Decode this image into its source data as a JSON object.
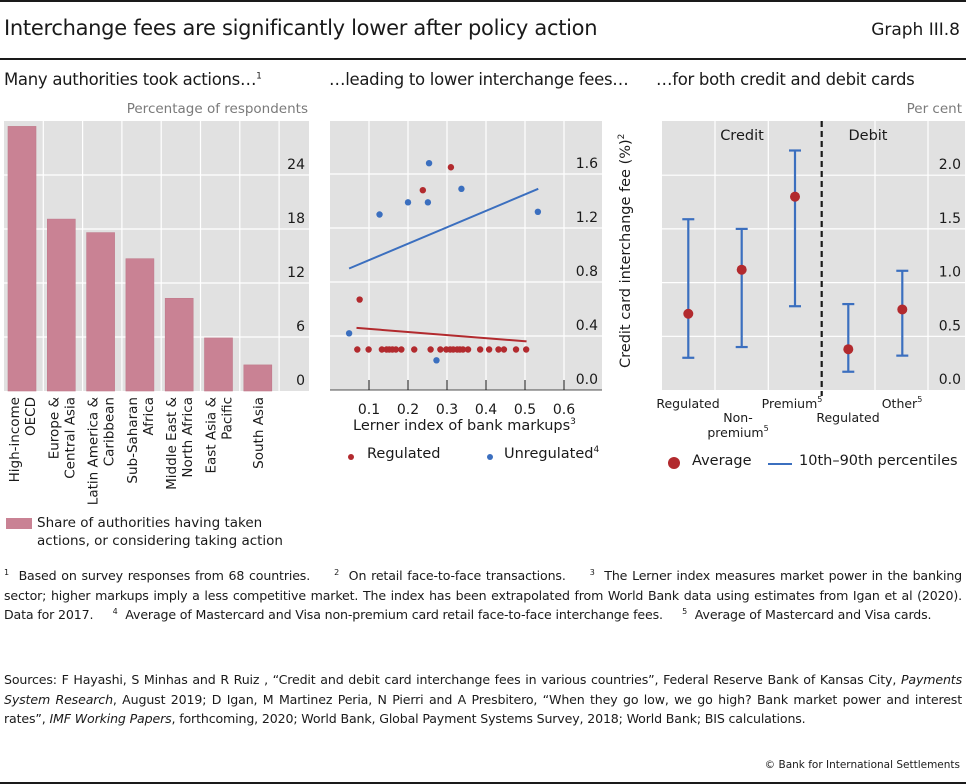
{
  "header": {
    "title": "Interchange fees are significantly lower after policy action",
    "graph_number": "Graph III.8"
  },
  "colors": {
    "bar": "#c98294",
    "regulated": "#b22a2e",
    "unregulated": "#3b6fbf",
    "plot_bg": "#e1e1e1",
    "grid": "#ffffff"
  },
  "panels": {
    "left": {
      "title": "Many authorities took actions…",
      "title_sup": "1",
      "unit": "Percentage of respondents",
      "legend": "Share of authorities having taken actions, or considering taking action"
    },
    "middle": {
      "title": "…leading to lower interchange fees…",
      "xlabel": "Lerner index of bank markups",
      "xlabel_sup": "3",
      "ylabel": "Credit card interchange fee (%)",
      "ylabel_sup": "2",
      "legend_regulated": "Regulated",
      "legend_unregulated": "Unregulated",
      "legend_unregulated_sup": "4"
    },
    "right": {
      "title": "…for both credit and debit cards",
      "unit": "Per cent",
      "legend_average": "Average",
      "legend_range": "10th–90th percentiles"
    }
  },
  "chart_data": [
    {
      "type": "bar",
      "title": "Many authorities took actions…",
      "ylabel": "Percentage of respondents",
      "categories": [
        "High-income OECD",
        "Europe & Central Asia",
        "Latin America & Caribbean",
        "Sub-Saharan Africa",
        "Middle East & North Africa",
        "East Asia & Pacific",
        "South Asia"
      ],
      "category_lines": [
        [
          "High-income",
          "OECD"
        ],
        [
          "Europe &",
          "Central Asia"
        ],
        [
          "Latin America &",
          "Caribbean"
        ],
        [
          "Sub-Saharan",
          "Africa"
        ],
        [
          "Middle East &",
          "North Africa"
        ],
        [
          "East Asia &",
          "Pacific"
        ],
        [
          "South Asia"
        ]
      ],
      "series": [
        {
          "name": "Share of authorities having taken actions, or considering taking action",
          "values": [
            29.4,
            19.1,
            17.6,
            14.7,
            10.3,
            5.9,
            2.9
          ]
        }
      ],
      "ylim": [
        0,
        30
      ],
      "yticks": [
        0,
        6,
        12,
        18,
        24
      ],
      "grid": true,
      "legend": "bottom-left"
    },
    {
      "type": "scatter",
      "title": "…leading to lower interchange fees…",
      "xlabel": "Lerner index of bank markups",
      "ylabel": "Credit card interchange fee (%)",
      "xlim": [
        0,
        0.7
      ],
      "ylim": [
        0,
        1.9
      ],
      "xticks": [
        0.1,
        0.2,
        0.3,
        0.4,
        0.5,
        0.6
      ],
      "yticks": [
        0.0,
        0.4,
        0.8,
        1.2,
        1.6
      ],
      "grid": true,
      "legend": "bottom",
      "series": [
        {
          "name": "Regulated",
          "points": [
            [
              0.31,
              1.65
            ],
            [
              0.238,
              1.48
            ],
            [
              0.076,
              0.67
            ],
            [
              0.07,
              0.3
            ],
            [
              0.099,
              0.3
            ],
            [
              0.133,
              0.3
            ],
            [
              0.145,
              0.3
            ],
            [
              0.152,
              0.3
            ],
            [
              0.16,
              0.3
            ],
            [
              0.169,
              0.3
            ],
            [
              0.183,
              0.3
            ],
            [
              0.216,
              0.3
            ],
            [
              0.258,
              0.3
            ],
            [
              0.283,
              0.3
            ],
            [
              0.298,
              0.3
            ],
            [
              0.308,
              0.3
            ],
            [
              0.316,
              0.3
            ],
            [
              0.326,
              0.3
            ],
            [
              0.333,
              0.3
            ],
            [
              0.341,
              0.3
            ],
            [
              0.354,
              0.3
            ],
            [
              0.385,
              0.3
            ],
            [
              0.408,
              0.3
            ],
            [
              0.432,
              0.3
            ],
            [
              0.446,
              0.3
            ],
            [
              0.477,
              0.3
            ],
            [
              0.503,
              0.3
            ]
          ],
          "fit_line": [
            [
              0.068,
              0.46
            ],
            [
              0.504,
              0.36
            ]
          ]
        },
        {
          "name": "Unregulated",
          "points": [
            [
              0.254,
              1.68
            ],
            [
              0.337,
              1.49
            ],
            [
              0.2,
              1.39
            ],
            [
              0.251,
              1.39
            ],
            [
              0.127,
              1.3
            ],
            [
              0.533,
              1.32
            ],
            [
              0.049,
              0.42
            ],
            [
              0.273,
              0.22
            ]
          ],
          "fit_line": [
            [
              0.049,
              0.9
            ],
            [
              0.534,
              1.49
            ]
          ]
        }
      ]
    },
    {
      "type": "errorbar",
      "title": "…for both credit and debit cards",
      "ylabel": "Per cent",
      "ylim": [
        0,
        2.4
      ],
      "yticks": [
        0.0,
        0.5,
        1.0,
        1.5,
        2.0
      ],
      "grid": true,
      "legend": "bottom",
      "groups": [
        "Credit",
        "Debit"
      ],
      "categories": [
        {
          "label": "Regulated",
          "sup": "",
          "group": "Credit",
          "average": 0.71,
          "p10": 0.3,
          "p90": 1.59
        },
        {
          "label": "Non-premium",
          "label_lines": [
            "Non-",
            "premium"
          ],
          "sup": "5",
          "group": "Credit",
          "average": 1.12,
          "p10": 0.4,
          "p90": 1.5
        },
        {
          "label": "Premium",
          "sup": "5",
          "group": "Credit",
          "average": 1.8,
          "p10": 0.78,
          "p90": 2.23
        },
        {
          "label": "Regulated",
          "sup": "",
          "group": "Debit",
          "average": 0.38,
          "p10": 0.17,
          "p90": 0.8
        },
        {
          "label": "Other",
          "sup": "5",
          "group": "Debit",
          "average": 0.75,
          "p10": 0.32,
          "p90": 1.11
        }
      ]
    }
  ],
  "footnotes": [
    {
      "n": "1",
      "text": "Based on survey responses from 68 countries."
    },
    {
      "n": "2",
      "text": "On retail face-to-face transactions."
    },
    {
      "n": "3",
      "text": "The Lerner index measures market power in the banking sector; higher markups imply a less competitive market. The index has been extrapolated from World Bank data using estimates from Igan et al (2020). Data for 2017."
    },
    {
      "n": "4",
      "text": "Average of Mastercard and Visa non-premium card retail face-to-face interchange fees."
    },
    {
      "n": "5",
      "text": "Average of Mastercard and Visa cards."
    }
  ],
  "sources": {
    "prefix": "Sources: F Hayashi, S Minhas and R Ruiz , “Credit and debit card interchange fees in various countries”, Federal Reserve Bank of Kansas City, ",
    "italic1": "Payments System Research",
    "mid": ", August 2019; D Igan, M Martinez Peria, N Pierri and A Presbitero, “When they go low, we go high? Bank market power and interest rates”, ",
    "italic2": "IMF Working Papers",
    "suffix": ", forthcoming, 2020; World Bank, Global Payment Systems Survey, 2018; World Bank; BIS calculations."
  },
  "copyright": "© Bank for International Settlements"
}
